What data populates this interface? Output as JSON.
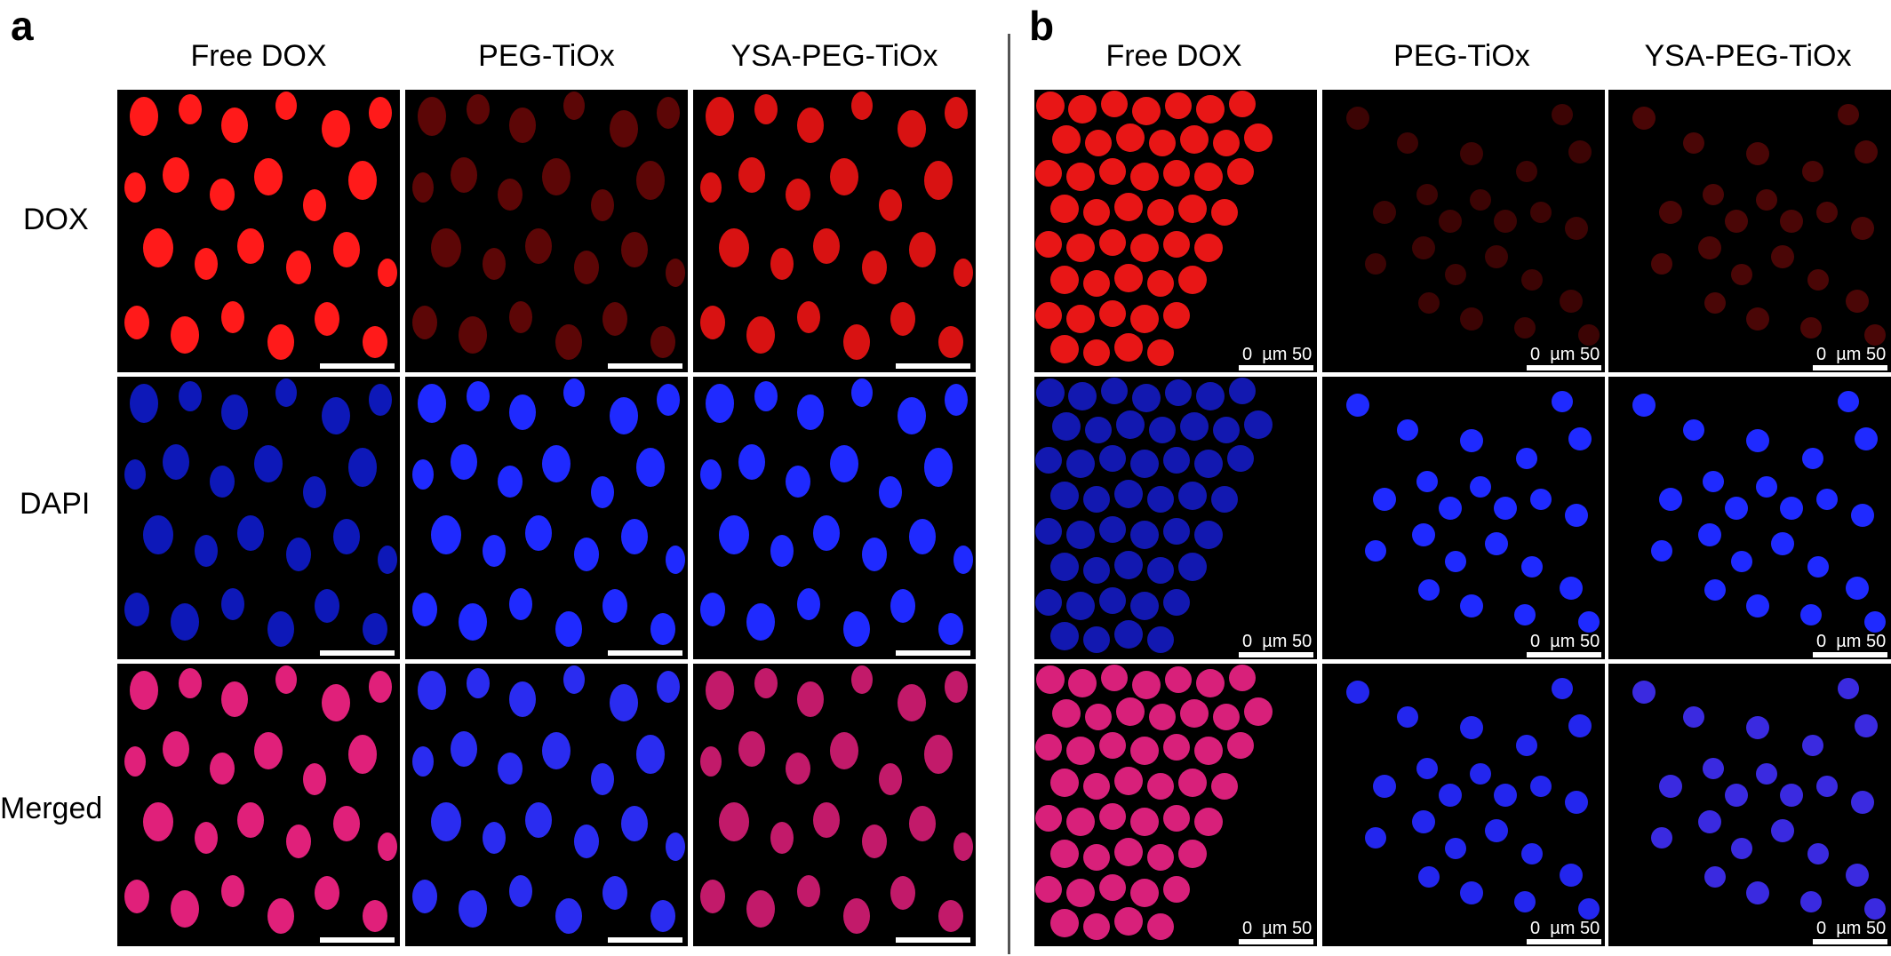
{
  "panels": [
    {
      "letter": "a",
      "columns": [
        "Free DOX",
        "PEG-TiOx",
        "YSA-PEG-TiOx"
      ],
      "rows": [
        "DOX",
        "DAPI",
        "Merged"
      ],
      "scale_bar_label": ""
    },
    {
      "letter": "b",
      "columns": [
        "Free DOX",
        "PEG-TiOx",
        "YSA-PEG-TiOx"
      ],
      "rows": [
        "DOX",
        "DAPI",
        "Merged"
      ],
      "scale_bar_label": {
        "zero": "0",
        "unit": "µm",
        "value": "50"
      }
    }
  ],
  "colors": {
    "dox_red": "#ff1a1a",
    "dapi_blue": "#1f2aff",
    "merged_magenta": "#e0207a",
    "background": "#000000"
  }
}
